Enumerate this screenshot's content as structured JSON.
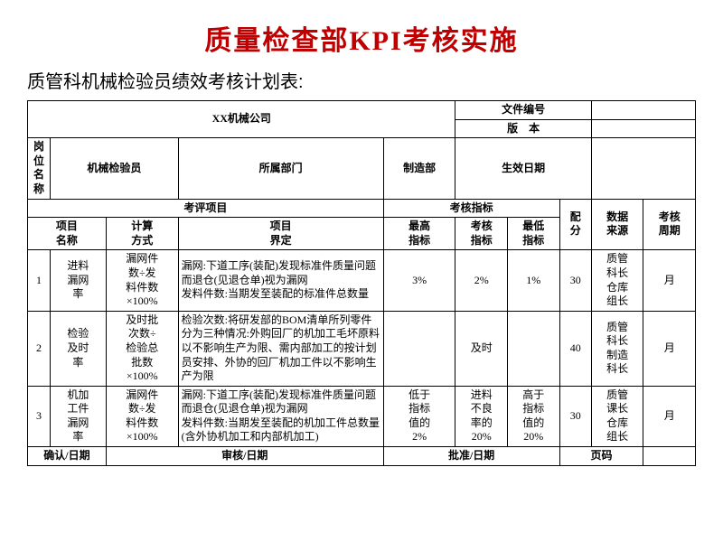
{
  "title": "质量检查部KPI考核实施",
  "subtitle": "质管科机械检验员绩效考核计划表:",
  "header": {
    "company": "XX机械公司",
    "doc_no_label": "文件编号",
    "version_label": "版　本",
    "effective_label": "生效日期",
    "position_label": "岗位名称",
    "position_value": "机械检验员",
    "dept_label": "所属部门",
    "dept_value": "制造部"
  },
  "columns": {
    "eval_item_group": "考评项目",
    "eval_metric_group": "考核指标",
    "item_name": "项目\n名称",
    "calc_method": "计算\n方式",
    "item_def": "项目\n界定",
    "max_metric": "最高\n指标",
    "assess_metric": "考核\n指标",
    "min_metric": "最低\n指标",
    "score": "配\n分",
    "data_source": "数据\n来源",
    "cycle": "考核\n周期"
  },
  "rows": [
    {
      "idx": "1",
      "name": "进料\n漏网\n率",
      "calc": "漏网件\n数÷发\n料件数\n×100%",
      "def": "漏网:下道工序(装配)发现标准件质量问题而退仓(见退仓单)视为漏网\n发料件数:当期发至装配的标准件总数量",
      "max": "3%",
      "assess": "2%",
      "min": "1%",
      "score": "30",
      "source": "质管\n科长\n仓库\n组长",
      "cycle": "月"
    },
    {
      "idx": "2",
      "name": "检验\n及时\n率",
      "calc": "及时批\n次数÷\n检验总\n批数\n×100%",
      "def": "检验次数:将研发部的BOM清单所列零件分为三种情况:外购回厂的机加工毛坏原料以不影响生产为限、需内部加工的按计划员安排、外协的回厂机加工件以不影响生产为限",
      "max": "",
      "assess": "及时",
      "min": "",
      "score": "40",
      "source": "质管\n科长\n制造\n科长",
      "cycle": "月"
    },
    {
      "idx": "3",
      "name": "机加\n工件\n漏网\n率",
      "calc": "漏网件\n数÷发\n料件数\n×100%",
      "def": "漏网:下道工序(装配)发现标准件质量问题而退仓(见退仓单)视为漏网\n发料件数:当期发至装配的机加工件总数量(含外协机加工和内部机加工)",
      "max": "低于\n指标\n值的\n2%",
      "assess": "进料\n不良\n率的\n20%",
      "min": "高于\n指标\n值的\n20%",
      "score": "30",
      "source": "质管\n课长\n仓库\n组长",
      "cycle": "月"
    }
  ],
  "footer": {
    "confirm": "确认/日期",
    "review": "审核/日期",
    "approve": "批准/日期",
    "page": "页码"
  }
}
